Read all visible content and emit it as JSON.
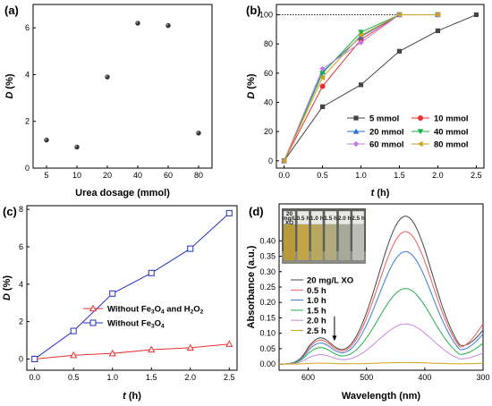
{
  "chart_data": [
    {
      "panel": "(a)",
      "type": "scatter",
      "xlabel": "Urea dosage (mmol)",
      "ylabel_main": "D",
      "ylabel_unit": "(%)",
      "categories": [
        "5",
        "10",
        "20",
        "40",
        "60",
        "80"
      ],
      "values": [
        1.2,
        0.9,
        3.9,
        6.2,
        6.1,
        1.5
      ],
      "ylim": [
        0,
        7
      ],
      "yticks": [
        "0",
        "2",
        "4",
        "6"
      ],
      "marker_color": "#333333"
    },
    {
      "panel": "(b)",
      "type": "line",
      "xlabel_main": "t",
      "xlabel_unit": "(h)",
      "ylabel_main": "D",
      "ylabel_unit": "(%)",
      "xlim": [
        -0.1,
        2.6
      ],
      "ylim": [
        -5,
        107
      ],
      "xticks": [
        "0.0",
        "0.5",
        "1.0",
        "1.5",
        "2.0",
        "2.5"
      ],
      "yticks": [
        "0",
        "20",
        "40",
        "60",
        "80",
        "100"
      ],
      "reference_line_y": 100,
      "series": [
        {
          "name": "5 mmol",
          "color": "#444444",
          "marker": "square",
          "x": [
            0,
            0.5,
            1.0,
            1.5,
            2.0,
            2.5
          ],
          "y": [
            0,
            37,
            52,
            75,
            89,
            100
          ]
        },
        {
          "name": "10 mmol",
          "color": "#e8312f",
          "marker": "circle",
          "x": [
            0,
            0.5,
            1.0,
            1.5,
            2.0
          ],
          "y": [
            0,
            51,
            83,
            100,
            100
          ]
        },
        {
          "name": "20 mmol",
          "color": "#2a6fd6",
          "marker": "triangle-up",
          "x": [
            0,
            0.5,
            1.0,
            1.5,
            2.0
          ],
          "y": [
            0,
            61,
            85,
            100,
            100
          ]
        },
        {
          "name": "40 mmol",
          "color": "#1ab04a",
          "marker": "triangle-down",
          "x": [
            0,
            0.5,
            1.0,
            1.5,
            2.0
          ],
          "y": [
            0,
            60,
            88,
            100,
            100
          ]
        },
        {
          "name": "60 mmol",
          "color": "#c37be0",
          "marker": "diamond",
          "x": [
            0,
            0.5,
            1.0,
            1.5,
            2.0
          ],
          "y": [
            0,
            63,
            81,
            100,
            100
          ]
        },
        {
          "name": "80 mmol",
          "color": "#c9a21e",
          "marker": "triangle-left",
          "x": [
            0,
            0.5,
            1.0,
            1.5,
            2.0
          ],
          "y": [
            0,
            57,
            86,
            100,
            100
          ]
        }
      ]
    },
    {
      "panel": "(c)",
      "type": "line",
      "xlabel_main": "t",
      "xlabel_unit": "(h)",
      "ylabel_main": "D",
      "ylabel_unit": "(%)",
      "xlim": [
        -0.1,
        2.6
      ],
      "ylim": [
        -0.6,
        8.2
      ],
      "xticks": [
        "0.0",
        "0.5",
        "1.0",
        "1.5",
        "2.0",
        "2.5"
      ],
      "yticks": [
        "0",
        "2",
        "4",
        "6",
        "8"
      ],
      "series": [
        {
          "name": "Without Fe3O4 and H2O2",
          "legend_parts": [
            "Without Fe",
            "3",
            "O",
            "4",
            " and H",
            "2",
            "O",
            "2"
          ],
          "color": "#e8312f",
          "marker": "triangle-up-open",
          "x": [
            0,
            0.5,
            1.0,
            1.5,
            2.0,
            2.5
          ],
          "y": [
            0,
            0.2,
            0.3,
            0.5,
            0.6,
            0.8
          ]
        },
        {
          "name": "Without Fe3O4",
          "legend_parts": [
            "Without Fe",
            "3",
            "O",
            "4"
          ],
          "color": "#2230c8",
          "marker": "square-open",
          "x": [
            0,
            0.5,
            1.0,
            1.5,
            2.0,
            2.5
          ],
          "y": [
            0,
            1.5,
            3.5,
            4.6,
            5.9,
            7.8
          ]
        }
      ]
    },
    {
      "panel": "(d)",
      "type": "line",
      "xlabel": "Wavelength (nm)",
      "ylabel": "Absorbance (a.u.)",
      "xlim": [
        650,
        300
      ],
      "ylim": [
        -0.02,
        0.52
      ],
      "xticks": [
        "600",
        "500",
        "400",
        "300"
      ],
      "yticks": [
        "0.00",
        "0.05",
        "0.10",
        "0.15",
        "0.20",
        "0.25",
        "0.30",
        "0.35",
        "0.40"
      ],
      "arrow_annotation": "downward arrow at ~555 nm",
      "inset_labels": [
        "20 mg/L XO",
        "0.5 h",
        "1.0 h",
        "1.5 h",
        "2.0 h",
        "2.5 h"
      ],
      "series": [
        {
          "name": "20 mg/L XO",
          "color": "#444444",
          "peak": 0.48,
          "shoulder": 0.082,
          "base": 0.122
        },
        {
          "name": "0.5 h",
          "color": "#f05a5a",
          "peak": 0.43,
          "shoulder": 0.075,
          "base": 0.145
        },
        {
          "name": "1.0 h",
          "color": "#3a7bd5",
          "peak": 0.365,
          "shoulder": 0.066,
          "base": 0.108
        },
        {
          "name": "1.5 h",
          "color": "#22b04a",
          "peak": 0.245,
          "shoulder": 0.052,
          "base": 0.075
        },
        {
          "name": "2.0 h",
          "color": "#c785e6",
          "peak": 0.13,
          "shoulder": 0.03,
          "base": 0.04
        },
        {
          "name": "2.5 h",
          "color": "#d4a017",
          "peak": 0.005,
          "shoulder": 0.003,
          "base": 0.003
        }
      ]
    }
  ]
}
